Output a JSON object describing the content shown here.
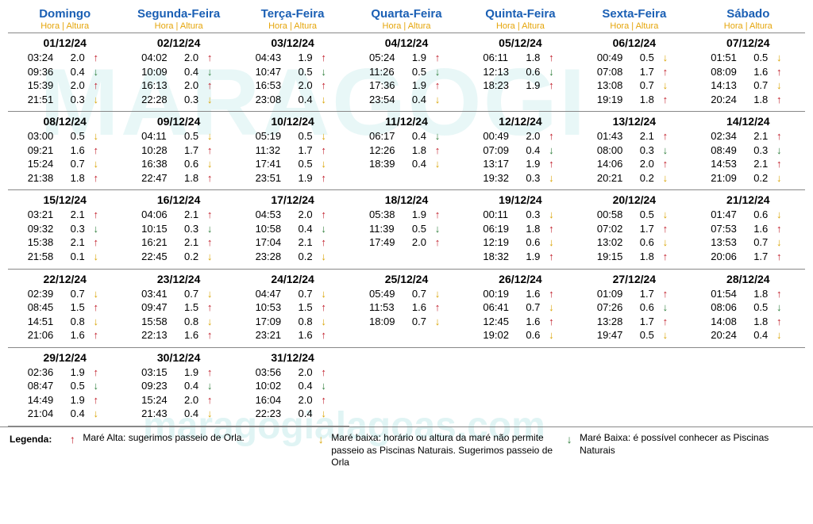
{
  "colors": {
    "header_blue": "#1a5fb4",
    "header_orange": "#e5a50a",
    "arrow_up_red": "#c01c28",
    "arrow_down_green": "#2d7d3a",
    "arrow_down_yellow": "#d9a404",
    "text": "#000000",
    "watermark": "rgba(110,200,200,0.18)"
  },
  "watermark_main": "MARAGOGI",
  "watermark_sub": "maragogialagoas.com",
  "headers": [
    {
      "day": "Domingo",
      "sub": "Hora | Altura"
    },
    {
      "day": "Segunda-Feira",
      "sub": "Hora | Altura"
    },
    {
      "day": "Terça-Feira",
      "sub": "Hora | Altura"
    },
    {
      "day": "Quarta-Feira",
      "sub": "Hora | Altura"
    },
    {
      "day": "Quinta-Feira",
      "sub": "Hora | Altura"
    },
    {
      "day": "Sexta-Feira",
      "sub": "Hora | Altura"
    },
    {
      "day": "Sábado",
      "sub": "Hora | Altura"
    }
  ],
  "weeks": [
    [
      {
        "date": "01/12/24",
        "tides": [
          [
            "03:24",
            "2.0",
            "up"
          ],
          [
            "09:36",
            "0.4",
            "dg"
          ],
          [
            "15:39",
            "2.0",
            "up"
          ],
          [
            "21:51",
            "0.3",
            "dy"
          ]
        ]
      },
      {
        "date": "02/12/24",
        "tides": [
          [
            "04:02",
            "2.0",
            "up"
          ],
          [
            "10:09",
            "0.4",
            "dg"
          ],
          [
            "16:13",
            "2.0",
            "up"
          ],
          [
            "22:28",
            "0.3",
            "dy"
          ]
        ]
      },
      {
        "date": "03/12/24",
        "tides": [
          [
            "04:43",
            "1.9",
            "up"
          ],
          [
            "10:47",
            "0.5",
            "dg"
          ],
          [
            "16:53",
            "2.0",
            "up"
          ],
          [
            "23:08",
            "0.4",
            "dy"
          ]
        ]
      },
      {
        "date": "04/12/24",
        "tides": [
          [
            "05:24",
            "1.9",
            "up"
          ],
          [
            "11:26",
            "0.5",
            "dg"
          ],
          [
            "17:36",
            "1.9",
            "up"
          ],
          [
            "23:54",
            "0.4",
            "dy"
          ]
        ]
      },
      {
        "date": "05/12/24",
        "tides": [
          [
            "06:11",
            "1.8",
            "up"
          ],
          [
            "12:13",
            "0.6",
            "dg"
          ],
          [
            "18:23",
            "1.9",
            "up"
          ]
        ]
      },
      {
        "date": "06/12/24",
        "tides": [
          [
            "00:49",
            "0.5",
            "dy"
          ],
          [
            "07:08",
            "1.7",
            "up"
          ],
          [
            "13:08",
            "0.7",
            "dy"
          ],
          [
            "19:19",
            "1.8",
            "up"
          ]
        ]
      },
      {
        "date": "07/12/24",
        "tides": [
          [
            "01:51",
            "0.5",
            "dy"
          ],
          [
            "08:09",
            "1.6",
            "up"
          ],
          [
            "14:13",
            "0.7",
            "dy"
          ],
          [
            "20:24",
            "1.8",
            "up"
          ]
        ]
      }
    ],
    [
      {
        "date": "08/12/24",
        "tides": [
          [
            "03:00",
            "0.5",
            "dy"
          ],
          [
            "09:21",
            "1.6",
            "up"
          ],
          [
            "15:24",
            "0.7",
            "dy"
          ],
          [
            "21:38",
            "1.8",
            "up"
          ]
        ]
      },
      {
        "date": "09/12/24",
        "tides": [
          [
            "04:11",
            "0.5",
            "dy"
          ],
          [
            "10:28",
            "1.7",
            "up"
          ],
          [
            "16:38",
            "0.6",
            "dy"
          ],
          [
            "22:47",
            "1.8",
            "up"
          ]
        ]
      },
      {
        "date": "10/12/24",
        "tides": [
          [
            "05:19",
            "0.5",
            "dy"
          ],
          [
            "11:32",
            "1.7",
            "up"
          ],
          [
            "17:41",
            "0.5",
            "dy"
          ],
          [
            "23:51",
            "1.9",
            "up"
          ]
        ]
      },
      {
        "date": "11/12/24",
        "tides": [
          [
            "06:17",
            "0.4",
            "dg"
          ],
          [
            "12:26",
            "1.8",
            "up"
          ],
          [
            "18:39",
            "0.4",
            "dy"
          ]
        ]
      },
      {
        "date": "12/12/24",
        "tides": [
          [
            "00:49",
            "2.0",
            "up"
          ],
          [
            "07:09",
            "0.4",
            "dg"
          ],
          [
            "13:17",
            "1.9",
            "up"
          ],
          [
            "19:32",
            "0.3",
            "dy"
          ]
        ]
      },
      {
        "date": "13/12/24",
        "tides": [
          [
            "01:43",
            "2.1",
            "up"
          ],
          [
            "08:00",
            "0.3",
            "dg"
          ],
          [
            "14:06",
            "2.0",
            "up"
          ],
          [
            "20:21",
            "0.2",
            "dy"
          ]
        ]
      },
      {
        "date": "14/12/24",
        "tides": [
          [
            "02:34",
            "2.1",
            "up"
          ],
          [
            "08:49",
            "0.3",
            "dg"
          ],
          [
            "14:53",
            "2.1",
            "up"
          ],
          [
            "21:09",
            "0.2",
            "dy"
          ]
        ]
      }
    ],
    [
      {
        "date": "15/12/24",
        "tides": [
          [
            "03:21",
            "2.1",
            "up"
          ],
          [
            "09:32",
            "0.3",
            "dg"
          ],
          [
            "15:38",
            "2.1",
            "up"
          ],
          [
            "21:58",
            "0.1",
            "dy"
          ]
        ]
      },
      {
        "date": "16/12/24",
        "tides": [
          [
            "04:06",
            "2.1",
            "up"
          ],
          [
            "10:15",
            "0.3",
            "dg"
          ],
          [
            "16:21",
            "2.1",
            "up"
          ],
          [
            "22:45",
            "0.2",
            "dy"
          ]
        ]
      },
      {
        "date": "17/12/24",
        "tides": [
          [
            "04:53",
            "2.0",
            "up"
          ],
          [
            "10:58",
            "0.4",
            "dg"
          ],
          [
            "17:04",
            "2.1",
            "up"
          ],
          [
            "23:28",
            "0.2",
            "dy"
          ]
        ]
      },
      {
        "date": "18/12/24",
        "tides": [
          [
            "05:38",
            "1.9",
            "up"
          ],
          [
            "11:39",
            "0.5",
            "dg"
          ],
          [
            "17:49",
            "2.0",
            "up"
          ]
        ]
      },
      {
        "date": "19/12/24",
        "tides": [
          [
            "00:11",
            "0.3",
            "dy"
          ],
          [
            "06:19",
            "1.8",
            "up"
          ],
          [
            "12:19",
            "0.6",
            "dy"
          ],
          [
            "18:32",
            "1.9",
            "up"
          ]
        ]
      },
      {
        "date": "20/12/24",
        "tides": [
          [
            "00:58",
            "0.5",
            "dy"
          ],
          [
            "07:02",
            "1.7",
            "up"
          ],
          [
            "13:02",
            "0.6",
            "dy"
          ],
          [
            "19:15",
            "1.8",
            "up"
          ]
        ]
      },
      {
        "date": "21/12/24",
        "tides": [
          [
            "01:47",
            "0.6",
            "dy"
          ],
          [
            "07:53",
            "1.6",
            "up"
          ],
          [
            "13:53",
            "0.7",
            "dy"
          ],
          [
            "20:06",
            "1.7",
            "up"
          ]
        ]
      }
    ],
    [
      {
        "date": "22/12/24",
        "tides": [
          [
            "02:39",
            "0.7",
            "dy"
          ],
          [
            "08:45",
            "1.5",
            "up"
          ],
          [
            "14:51",
            "0.8",
            "dy"
          ],
          [
            "21:06",
            "1.6",
            "up"
          ]
        ]
      },
      {
        "date": "23/12/24",
        "tides": [
          [
            "03:41",
            "0.7",
            "dy"
          ],
          [
            "09:47",
            "1.5",
            "up"
          ],
          [
            "15:58",
            "0.8",
            "dy"
          ],
          [
            "22:13",
            "1.6",
            "up"
          ]
        ]
      },
      {
        "date": "24/12/24",
        "tides": [
          [
            "04:47",
            "0.7",
            "dy"
          ],
          [
            "10:53",
            "1.5",
            "up"
          ],
          [
            "17:09",
            "0.8",
            "dy"
          ],
          [
            "23:21",
            "1.6",
            "up"
          ]
        ]
      },
      {
        "date": "25/12/24",
        "tides": [
          [
            "05:49",
            "0.7",
            "dy"
          ],
          [
            "11:53",
            "1.6",
            "up"
          ],
          [
            "18:09",
            "0.7",
            "dy"
          ]
        ]
      },
      {
        "date": "26/12/24",
        "tides": [
          [
            "00:19",
            "1.6",
            "up"
          ],
          [
            "06:41",
            "0.7",
            "dy"
          ],
          [
            "12:45",
            "1.6",
            "up"
          ],
          [
            "19:02",
            "0.6",
            "dy"
          ]
        ]
      },
      {
        "date": "27/12/24",
        "tides": [
          [
            "01:09",
            "1.7",
            "up"
          ],
          [
            "07:26",
            "0.6",
            "dg"
          ],
          [
            "13:28",
            "1.7",
            "up"
          ],
          [
            "19:47",
            "0.5",
            "dy"
          ]
        ]
      },
      {
        "date": "28/12/24",
        "tides": [
          [
            "01:54",
            "1.8",
            "up"
          ],
          [
            "08:06",
            "0.5",
            "dg"
          ],
          [
            "14:08",
            "1.8",
            "up"
          ],
          [
            "20:24",
            "0.4",
            "dy"
          ]
        ]
      }
    ],
    [
      {
        "date": "29/12/24",
        "tides": [
          [
            "02:36",
            "1.9",
            "up"
          ],
          [
            "08:47",
            "0.5",
            "dg"
          ],
          [
            "14:49",
            "1.9",
            "up"
          ],
          [
            "21:04",
            "0.4",
            "dy"
          ]
        ]
      },
      {
        "date": "30/12/24",
        "tides": [
          [
            "03:15",
            "1.9",
            "up"
          ],
          [
            "09:23",
            "0.4",
            "dg"
          ],
          [
            "15:24",
            "2.0",
            "up"
          ],
          [
            "21:43",
            "0.4",
            "dy"
          ]
        ]
      },
      {
        "date": "31/12/24",
        "tides": [
          [
            "03:56",
            "2.0",
            "up"
          ],
          [
            "10:02",
            "0.4",
            "dg"
          ],
          [
            "16:04",
            "2.0",
            "up"
          ],
          [
            "22:23",
            "0.4",
            "dy"
          ]
        ]
      },
      null,
      null,
      null,
      null
    ]
  ],
  "legend": {
    "label": "Legenda:",
    "items": [
      {
        "arrow": "up",
        "text": "Maré Alta: sugerimos passeio de Orla."
      },
      {
        "arrow": "dy",
        "text": "Maré baixa: horário ou altura da maré não permite passeio as Piscinas Naturais. Sugerimos passeio de Orla"
      },
      {
        "arrow": "dg",
        "text": "Maré Baixa: é possível conhecer as Piscinas Naturais"
      }
    ]
  },
  "arrows": {
    "up": {
      "glyph": "↑",
      "color": "#c01c28"
    },
    "dg": {
      "glyph": "↓",
      "color": "#2d7d3a"
    },
    "dy": {
      "glyph": "↓",
      "color": "#d9a404"
    }
  }
}
